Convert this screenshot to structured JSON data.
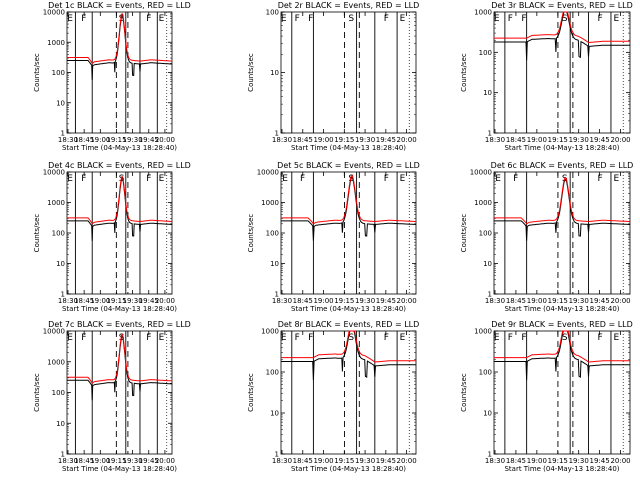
{
  "chart_data": [
    {
      "type": "line",
      "title": "Det 1c BLACK = Events, RED = LLD",
      "xlabel": "Start Time (04-May-13 18:28:40)",
      "ylabel": "Counts/sec",
      "yscale": "log",
      "ylim": [
        1,
        10000
      ],
      "xlim": [
        0,
        100
      ],
      "xticks": [
        "18:30",
        "18:45",
        "19:00",
        "19:15",
        "19:30",
        "19:45",
        "20:00"
      ],
      "yticks": [
        "1",
        "10",
        "100",
        "1000",
        "10000"
      ],
      "segment_letters": [
        "E",
        "F",
        "S",
        "F",
        "E"
      ],
      "peak": 8000,
      "series": [
        {
          "name": "Events",
          "color": "#000000"
        },
        {
          "name": "LLD",
          "color": "#ff0000"
        }
      ]
    },
    {
      "type": "line",
      "title": "Det 2r BLACK = Events, RED = LLD",
      "xlabel": "Start Time (04-May-13 18:28:40)",
      "ylabel": "Counts/sec",
      "yscale": "log",
      "ylim": [
        1,
        100
      ],
      "xlim": [
        0,
        100
      ],
      "xticks": [
        "18:30",
        "18:45",
        "19:00",
        "19:15",
        "19:30",
        "19:45",
        "20:00"
      ],
      "yticks": [
        "1",
        "10",
        "100"
      ],
      "segment_letters": [
        "E",
        "F",
        "F",
        "S",
        "F",
        "E"
      ],
      "peak": null,
      "series": []
    },
    {
      "type": "line",
      "title": "Det 3r BLACK = Events, RED = LLD",
      "xlabel": "Start Time (04-May-13 18:28:40)",
      "ylabel": "Counts/sec",
      "yscale": "log",
      "ylim": [
        1,
        1000
      ],
      "xlim": [
        0,
        100
      ],
      "xticks": [
        "18:30",
        "18:45",
        "19:00",
        "19:15",
        "19:30",
        "19:45",
        "20:00"
      ],
      "yticks": [
        "1",
        "10",
        "100",
        "1000"
      ],
      "segment_letters": [
        "E",
        "F",
        "F",
        "S",
        "F",
        "E"
      ],
      "peak": 1200,
      "series": [
        {
          "name": "Events",
          "color": "#000000"
        },
        {
          "name": "LLD",
          "color": "#ff0000"
        }
      ]
    },
    {
      "type": "line",
      "title": "Det 4c BLACK = Events, RED = LLD",
      "xlabel": "Start Time (04-May-13 18:28:40)",
      "ylabel": "Counts/sec",
      "yscale": "log",
      "ylim": [
        1,
        10000
      ],
      "xlim": [
        0,
        100
      ],
      "xticks": [
        "18:30",
        "18:45",
        "19:00",
        "19:15",
        "19:30",
        "19:45",
        "20:00"
      ],
      "yticks": [
        "1",
        "10",
        "100",
        "1000",
        "10000"
      ],
      "segment_letters": [
        "E",
        "F",
        "S",
        "F",
        "E"
      ],
      "peak": 6500,
      "series": [
        {
          "name": "Events",
          "color": "#000000"
        },
        {
          "name": "LLD",
          "color": "#ff0000"
        }
      ]
    },
    {
      "type": "line",
      "title": "Det 5c BLACK = Events, RED = LLD",
      "xlabel": "Start Time (04-May-13 18:28:40)",
      "ylabel": "Counts/sec",
      "yscale": "log",
      "ylim": [
        1,
        10000
      ],
      "xlim": [
        0,
        100
      ],
      "xticks": [
        "18:30",
        "18:45",
        "19:00",
        "19:15",
        "19:30",
        "19:45",
        "20:00"
      ],
      "yticks": [
        "1",
        "10",
        "100",
        "1000",
        "10000"
      ],
      "segment_letters": [
        "E",
        "F",
        "S",
        "F",
        "E"
      ],
      "peak": 7000,
      "series": [
        {
          "name": "Events",
          "color": "#000000"
        },
        {
          "name": "LLD",
          "color": "#ff0000"
        }
      ]
    },
    {
      "type": "line",
      "title": "Det 6c BLACK = Events, RED = LLD",
      "xlabel": "Start Time (04-May-13 18:28:40)",
      "ylabel": "Counts/sec",
      "yscale": "log",
      "ylim": [
        1,
        10000
      ],
      "xlim": [
        0,
        100
      ],
      "xticks": [
        "18:30",
        "18:45",
        "19:00",
        "19:15",
        "19:30",
        "19:45",
        "20:00"
      ],
      "yticks": [
        "1",
        "10",
        "100",
        "1000",
        "10000"
      ],
      "segment_letters": [
        "E",
        "F",
        "S",
        "F",
        "E"
      ],
      "peak": 6000,
      "series": [
        {
          "name": "Events",
          "color": "#000000"
        },
        {
          "name": "LLD",
          "color": "#ff0000"
        }
      ]
    },
    {
      "type": "line",
      "title": "Det 7c BLACK = Events, RED = LLD",
      "xlabel": "Start Time (04-May-13 18:28:40)",
      "ylabel": "Counts/sec",
      "yscale": "log",
      "ylim": [
        1,
        10000
      ],
      "xlim": [
        0,
        100
      ],
      "xticks": [
        "18:30",
        "18:45",
        "19:00",
        "19:15",
        "19:30",
        "19:45",
        "20:00"
      ],
      "yticks": [
        "1",
        "10",
        "100",
        "1000",
        "10000"
      ],
      "segment_letters": [
        "E",
        "F",
        "S",
        "F",
        "E"
      ],
      "peak": 7000,
      "series": [
        {
          "name": "Events",
          "color": "#000000"
        },
        {
          "name": "LLD",
          "color": "#ff0000"
        }
      ]
    },
    {
      "type": "line",
      "title": "Det 8r BLACK = Events, RED = LLD",
      "xlabel": "Start Time (04-May-13 18:28:40)",
      "ylabel": "Counts/sec",
      "yscale": "log",
      "ylim": [
        1,
        1000
      ],
      "xlim": [
        0,
        100
      ],
      "xticks": [
        "18:30",
        "18:45",
        "19:00",
        "19:15",
        "19:30",
        "19:45",
        "20:00"
      ],
      "yticks": [
        "1",
        "10",
        "100",
        "1000"
      ],
      "segment_letters": [
        "E",
        "F",
        "F",
        "S",
        "F",
        "E"
      ],
      "peak": 1500,
      "series": [
        {
          "name": "Events",
          "color": "#000000"
        },
        {
          "name": "LLD",
          "color": "#ff0000"
        }
      ]
    },
    {
      "type": "line",
      "title": "Det 9r BLACK = Events, RED = LLD",
      "xlabel": "Start Time (04-May-13 18:28:40)",
      "ylabel": "Counts/sec",
      "yscale": "log",
      "ylim": [
        1,
        1000
      ],
      "xlim": [
        0,
        100
      ],
      "xticks": [
        "18:30",
        "18:45",
        "19:00",
        "19:15",
        "19:30",
        "19:45",
        "20:00"
      ],
      "yticks": [
        "1",
        "10",
        "100",
        "1000"
      ],
      "segment_letters": [
        "E",
        "F",
        "F",
        "S",
        "F",
        "E"
      ],
      "peak": 1500,
      "series": [
        {
          "name": "Events",
          "color": "#000000"
        },
        {
          "name": "LLD",
          "color": "#ff0000"
        }
      ]
    }
  ]
}
